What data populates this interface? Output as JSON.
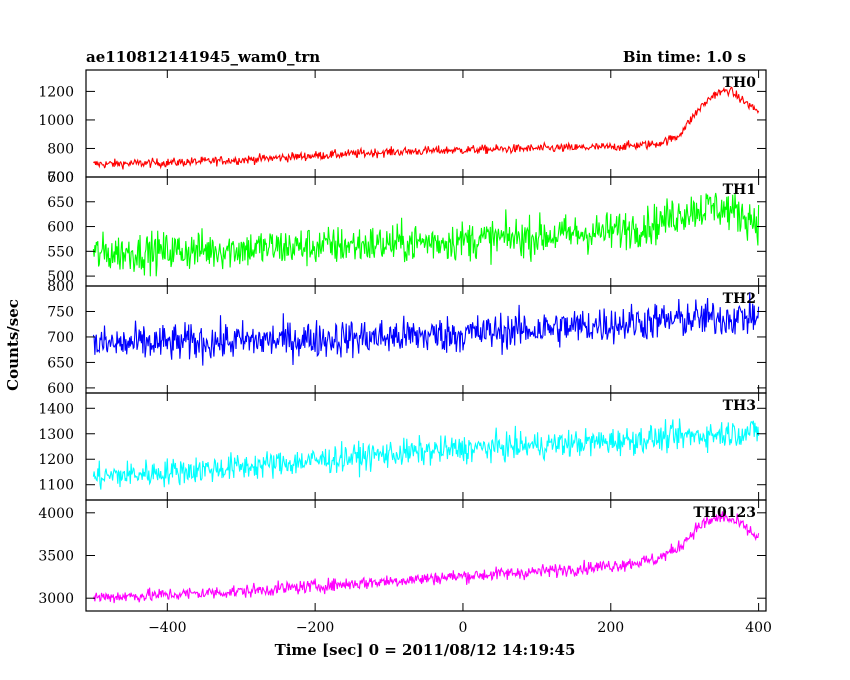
{
  "header": {
    "title": "ae110812141945_wam0_trn",
    "bin_time": "Bin time: 1.0 s"
  },
  "chart_data": {
    "type": "line",
    "title": "ae110812141945_wam0_trn",
    "xlabel": "Time [sec] 0 = 2011/08/12 14:19:45",
    "ylabel": "Counts/sec",
    "xlim": [
      -510,
      410
    ],
    "x_ticks": [
      -400,
      -200,
      0,
      200,
      400
    ],
    "x_tick_labels": [
      "−400",
      "−200",
      "0",
      "200",
      "400"
    ],
    "grid": false,
    "panels": [
      {
        "name": "TH0",
        "color": "#ff0000",
        "ylim": [
          600,
          1350
        ],
        "y_ticks": [
          600,
          800,
          1000,
          1200
        ],
        "y_tick_labels": [
          "600",
          "800",
          "1000",
          "1200"
        ],
        "noise": 22,
        "trend": [
          [
            -500,
            690
          ],
          [
            -400,
            700
          ],
          [
            -300,
            720
          ],
          [
            -200,
            750
          ],
          [
            -100,
            775
          ],
          [
            0,
            790
          ],
          [
            100,
            800
          ],
          [
            200,
            810
          ],
          [
            260,
            830
          ],
          [
            290,
            880
          ],
          [
            320,
            1080
          ],
          [
            340,
            1180
          ],
          [
            360,
            1210
          ],
          [
            380,
            1130
          ],
          [
            400,
            1060
          ]
        ]
      },
      {
        "name": "TH1",
        "color": "#00ff00",
        "ylim": [
          480,
          700
        ],
        "y_ticks": [
          500,
          550,
          600,
          650,
          700
        ],
        "y_tick_labels": [
          "500",
          "550",
          "600",
          "650",
          "700"
        ],
        "noise": 28,
        "trend": [
          [
            -500,
            545
          ],
          [
            -400,
            550
          ],
          [
            -300,
            555
          ],
          [
            -200,
            560
          ],
          [
            -100,
            565
          ],
          [
            0,
            572
          ],
          [
            100,
            580
          ],
          [
            200,
            590
          ],
          [
            260,
            605
          ],
          [
            300,
            630
          ],
          [
            340,
            640
          ],
          [
            370,
            628
          ],
          [
            400,
            610
          ]
        ]
      },
      {
        "name": "TH2",
        "color": "#0000ff",
        "ylim": [
          590,
          800
        ],
        "y_ticks": [
          600,
          650,
          700,
          750,
          800
        ],
        "y_tick_labels": [
          "600",
          "650",
          "700",
          "750",
          "800"
        ],
        "noise": 26,
        "trend": [
          [
            -500,
            685
          ],
          [
            -400,
            688
          ],
          [
            -300,
            692
          ],
          [
            -200,
            696
          ],
          [
            -100,
            700
          ],
          [
            0,
            706
          ],
          [
            100,
            715
          ],
          [
            200,
            725
          ],
          [
            300,
            735
          ],
          [
            400,
            740
          ]
        ]
      },
      {
        "name": "TH3",
        "color": "#00ffff",
        "ylim": [
          1040,
          1460
        ],
        "y_ticks": [
          1100,
          1200,
          1300,
          1400
        ],
        "y_tick_labels": [
          "1100",
          "1200",
          "1300",
          "1400"
        ],
        "noise": 38,
        "trend": [
          [
            -500,
            1130
          ],
          [
            -400,
            1150
          ],
          [
            -300,
            1170
          ],
          [
            -200,
            1195
          ],
          [
            -100,
            1220
          ],
          [
            0,
            1240
          ],
          [
            100,
            1255
          ],
          [
            200,
            1270
          ],
          [
            300,
            1290
          ],
          [
            400,
            1310
          ]
        ]
      },
      {
        "name": "TH0123",
        "color": "#ff00ff",
        "ylim": [
          2850,
          4150
        ],
        "y_ticks": [
          3000,
          3500,
          4000
        ],
        "y_tick_labels": [
          "3000",
          "3500",
          "4000"
        ],
        "noise": 55,
        "trend": [
          [
            -500,
            3010
          ],
          [
            -400,
            3040
          ],
          [
            -300,
            3080
          ],
          [
            -200,
            3140
          ],
          [
            -100,
            3200
          ],
          [
            0,
            3260
          ],
          [
            100,
            3310
          ],
          [
            200,
            3380
          ],
          [
            260,
            3450
          ],
          [
            290,
            3580
          ],
          [
            320,
            3850
          ],
          [
            350,
            3960
          ],
          [
            375,
            3870
          ],
          [
            400,
            3700
          ]
        ]
      }
    ]
  }
}
